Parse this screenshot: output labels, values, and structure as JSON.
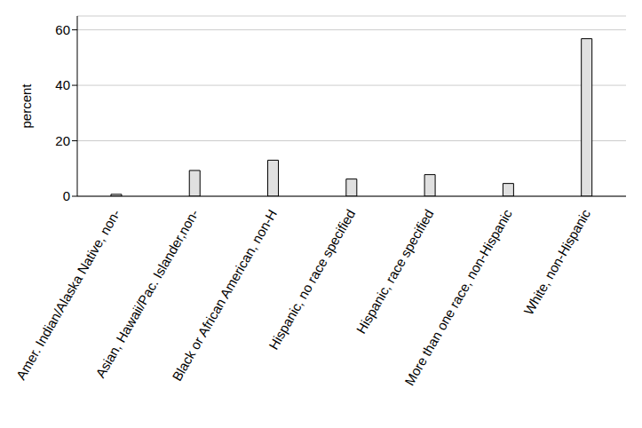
{
  "chart_data": {
    "type": "bar",
    "ylabel": "percent",
    "categories": [
      "Amer. Indian/Alaska Native, non-",
      "Asian, Hawaii/Pac. Islander,non-",
      "Black or African American, non-H",
      "Hispanic, no race specified",
      "Hispanic, race specified",
      "More than one race, non-Hispanic",
      "White, non-Hispanic"
    ],
    "values": [
      0.7,
      9.3,
      13.0,
      6.2,
      7.8,
      4.6,
      56.8
    ],
    "color": "#e0e0e0",
    "ylim": [
      0,
      65
    ],
    "yticks": [
      0,
      20,
      40,
      60
    ],
    "grid": true
  }
}
